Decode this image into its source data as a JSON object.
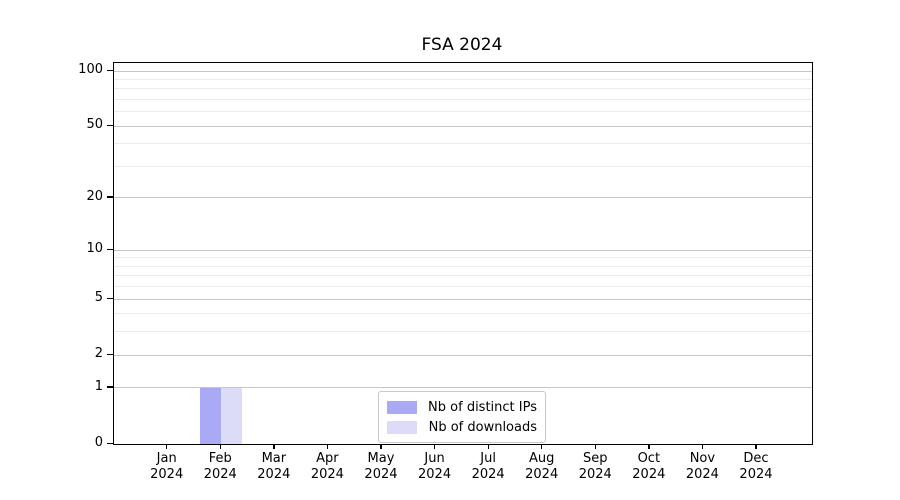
{
  "chart_data": {
    "type": "bar",
    "title": "FSA 2024",
    "x": {
      "months": [
        "Jan",
        "Feb",
        "Mar",
        "Apr",
        "May",
        "Jun",
        "Jul",
        "Aug",
        "Sep",
        "Oct",
        "Nov",
        "Dec"
      ],
      "year": "2024"
    },
    "series": [
      {
        "name": "Nb of distinct IPs",
        "color": "#a9a9f5",
        "values": [
          0,
          1,
          0,
          0,
          0,
          0,
          0,
          0,
          0,
          0,
          0,
          0
        ]
      },
      {
        "name": "Nb of downloads",
        "color": "#dcdcf8",
        "values": [
          0,
          1,
          0,
          0,
          0,
          0,
          0,
          0,
          0,
          0,
          0,
          0
        ]
      }
    ],
    "y_axis": {
      "scale": "log10(1+value)",
      "major_ticks": [
        0,
        1,
        2,
        5,
        10,
        20,
        50,
        100
      ],
      "minor_gridlines": [
        3,
        4,
        6,
        7,
        8,
        9,
        30,
        40,
        60,
        70,
        80,
        90
      ],
      "range": [
        0,
        110
      ]
    },
    "legend": {
      "position": "lower-center"
    },
    "grid": true,
    "colors": {
      "major_grid": "#c6c6c6",
      "minor_grid": "#ebebeb",
      "axis": "#000000",
      "text": "#000000",
      "legend_border": "#c9c9c9",
      "background": "#ffffff"
    }
  }
}
